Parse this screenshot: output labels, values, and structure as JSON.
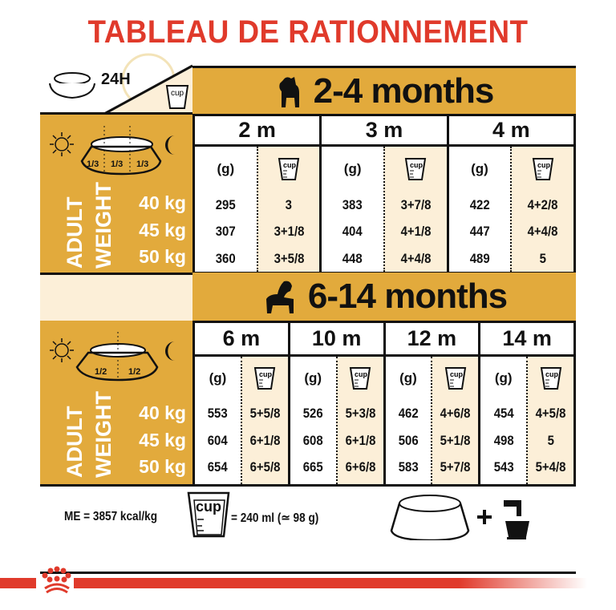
{
  "title": "TABLEAU DE RATIONNEMENT",
  "corner": {
    "label": "24H",
    "cup_label": "cup"
  },
  "left": {
    "adult": "ADULT",
    "weight": "WEIGHT",
    "weights": [
      "40 kg",
      "45 kg",
      "50 kg"
    ],
    "split_top": [
      "1/3",
      "1/3",
      "1/3"
    ],
    "split_bottom": [
      "1/2",
      "1/2"
    ]
  },
  "units": {
    "grams": "(g)",
    "cup": "cup"
  },
  "section1": {
    "title_num": "2-4",
    "title_word": "months",
    "columns": [
      {
        "label": "2 m",
        "grams": [
          "295",
          "307",
          "360"
        ],
        "cups": [
          "3",
          "3+1/8",
          "3+5/8"
        ]
      },
      {
        "label": "3 m",
        "grams": [
          "383",
          "404",
          "448"
        ],
        "cups": [
          "3+7/8",
          "4+1/8",
          "4+4/8"
        ]
      },
      {
        "label": "4 m",
        "grams": [
          "422",
          "447",
          "489"
        ],
        "cups": [
          "4+2/8",
          "4+4/8",
          "5"
        ]
      }
    ]
  },
  "section2": {
    "title_num": "6-14",
    "title_word": "months",
    "columns": [
      {
        "label": "6 m",
        "grams": [
          "553",
          "604",
          "654"
        ],
        "cups": [
          "5+5/8",
          "6+1/8",
          "6+5/8"
        ]
      },
      {
        "label": "10 m",
        "grams": [
          "526",
          "608",
          "665"
        ],
        "cups": [
          "5+3/8",
          "6+1/8",
          "6+6/8"
        ]
      },
      {
        "label": "12 m",
        "grams": [
          "462",
          "506",
          "583"
        ],
        "cups": [
          "4+6/8",
          "5+1/8",
          "5+7/8"
        ]
      },
      {
        "label": "14 m",
        "grams": [
          "454",
          "498",
          "543"
        ],
        "cups": [
          "4+5/8",
          "5",
          "5+4/8"
        ]
      }
    ]
  },
  "footer": {
    "energy": "ME = 3857 kcal/kg",
    "cup_label": "cup",
    "cup_equiv": "= 240 ml (≃ 98 g)",
    "plus": "+"
  },
  "colors": {
    "title": "#e03a2b",
    "gold": "#e2aa3c",
    "cream": "#fcefd8",
    "brand_red": "#e03a2b"
  }
}
